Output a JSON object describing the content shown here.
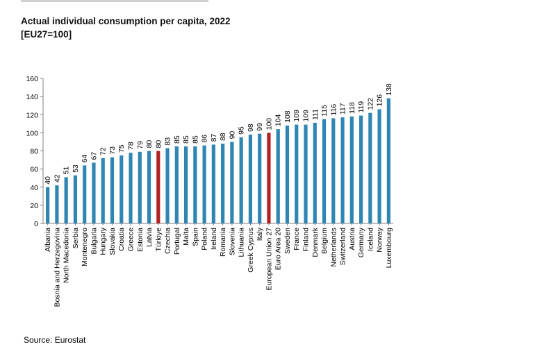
{
  "chart_data": {
    "type": "bar",
    "title": "Actual individual consumption per capita, 2022",
    "subtitle": "[EU27=100]",
    "categories": [
      "Albania",
      "Bosnia and Herzegovina",
      "North Macedonia",
      "Serbia",
      "Montenegro",
      "Bulgaria",
      "Hungary",
      "Slovakia",
      "Croatia",
      "Greece",
      "Estonia",
      "Latvia",
      "Türkiye",
      "Czechia",
      "Portugal",
      "Malta",
      "Spain",
      "Poland",
      "Ireland",
      "Romania",
      "Slovenia",
      "Lithuania",
      "Greek Cyprus",
      "Italy",
      "European Union 27",
      "Euro Area 20",
      "Sweden",
      "France",
      "Finland",
      "Denmark",
      "Belgium",
      "Netherlands",
      "Switzerland",
      "Austria",
      "Germany",
      "Iceland",
      "Norway",
      "Luxembourg"
    ],
    "values": [
      40,
      42,
      51,
      53,
      64,
      67,
      72,
      73,
      75,
      78,
      79,
      80,
      80,
      83,
      85,
      85,
      85,
      86,
      87,
      88,
      90,
      95,
      98,
      99,
      100,
      104,
      108,
      109,
      109,
      111,
      115,
      116,
      117,
      118,
      119,
      122,
      126,
      138
    ],
    "highlighted": [
      "Türkiye",
      "European Union 27"
    ],
    "ylim": [
      0,
      160
    ],
    "yticks": [
      0,
      20,
      40,
      60,
      80,
      100,
      120,
      140,
      160
    ],
    "xlabel": "",
    "ylabel": "",
    "grid": false,
    "legend": "none",
    "colors": {
      "bar": "#2f86b2",
      "highlight": "#b22222",
      "axis": "#7f7f7f"
    }
  },
  "source": "Source: Eurostat"
}
